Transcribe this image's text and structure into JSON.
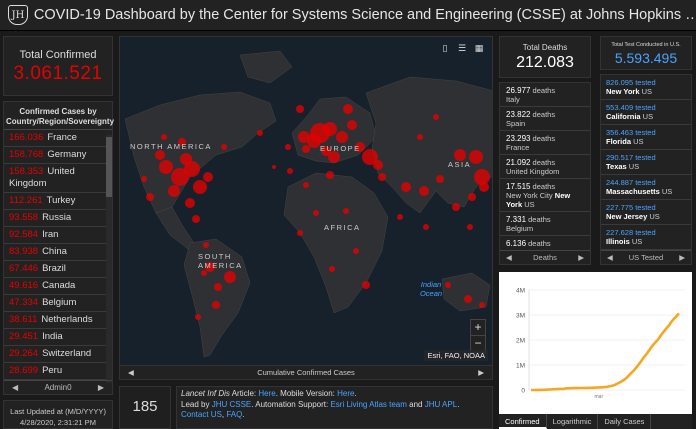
{
  "header": {
    "logo": "JH",
    "title": "COVID-19 Dashboard by the Center for Systems Science and Engineering (CSSE) at Johns Hopkins …"
  },
  "total_confirmed": {
    "label": "Total Confirmed",
    "value": "3.061.521"
  },
  "country_list": {
    "header": "Confirmed Cases by Country/Region/Sovereignty",
    "items": [
      {
        "count": "166.036",
        "name": "France"
      },
      {
        "count": "158.768",
        "name": "Germany"
      },
      {
        "count": "158.353",
        "name": "United Kingdom"
      },
      {
        "count": "112.261",
        "name": "Turkey"
      },
      {
        "count": "93.558",
        "name": "Russia"
      },
      {
        "count": "92.584",
        "name": "Iran"
      },
      {
        "count": "83.938",
        "name": "China"
      },
      {
        "count": "67.446",
        "name": "Brazil"
      },
      {
        "count": "49.616",
        "name": "Canada"
      },
      {
        "count": "47.334",
        "name": "Belgium"
      },
      {
        "count": "38.611",
        "name": "Netherlands"
      },
      {
        "count": "29.451",
        "name": "India"
      },
      {
        "count": "29.264",
        "name": "Switzerland"
      },
      {
        "count": "28.699",
        "name": "Peru"
      }
    ],
    "footer": "Admin0"
  },
  "last_updated": {
    "label": "Last Updated at (M/D/YYYY)",
    "value": "4/28/2020, 2:31:21 PM"
  },
  "map": {
    "labels": {
      "north_america": "NORTH AMERICA",
      "south_america": "SOUTH AMERICA",
      "europe": "EUROPE",
      "africa": "AFRICA",
      "asia": "ASIA",
      "indian_ocean": "Indian Ocean"
    },
    "attribution": "Esri, FAO, NOAA",
    "caption": "Cumulative Confirmed Cases",
    "zoom_in": "+",
    "zoom_out": "−"
  },
  "countries_count": {
    "value": "185"
  },
  "info": {
    "p1": "Lancet Inf Dis",
    "p2": " Article: ",
    "here1": "Here",
    "p3": ". Mobile Version: ",
    "here2": "Here",
    "p4": ".",
    "lead": "Lead by ",
    "jhu": "JHU CSSE",
    "auto": ". Automation Support: ",
    "esri": "Esri Living Atlas team",
    "and": " and ",
    "jhuapl": "JHU APL",
    "dot": ". ",
    "contact": "Contact US",
    "faq": "FAQ"
  },
  "total_deaths": {
    "label": "Total Deaths",
    "value": "212.083"
  },
  "deaths_list": {
    "items": [
      {
        "count": "26.977",
        "unit": "deaths",
        "place": "Italy"
      },
      {
        "count": "23.822",
        "unit": "deaths",
        "place": "Spain"
      },
      {
        "count": "23.293",
        "unit": "deaths",
        "place": "France"
      },
      {
        "count": "21.092",
        "unit": "deaths",
        "place": "United Kingdom"
      },
      {
        "count": "17.515",
        "unit": "deaths",
        "place": "New York City ",
        "bold": "New York",
        "rest": " US"
      },
      {
        "count": "7.331",
        "unit": "deaths",
        "place": "Belgium"
      },
      {
        "count": "6.136",
        "unit": "deaths",
        "place": ""
      }
    ],
    "footer": "Deaths"
  },
  "total_tests": {
    "label": "Total Test Conducted in U.S.",
    "value": "5.593.495"
  },
  "tests_list": {
    "items": [
      {
        "count": "826.095 tested",
        "state": "New York",
        "country": "US"
      },
      {
        "count": "553.409 tested",
        "state": "California",
        "country": "US"
      },
      {
        "count": "356.463 tested",
        "state": "Florida",
        "country": "US"
      },
      {
        "count": "290.517 tested",
        "state": "Texas",
        "country": "US"
      },
      {
        "count": "244.887 tested",
        "state": "Massachusetts",
        "country": "US"
      },
      {
        "count": "227.775 tested",
        "state": "New Jersey",
        "country": "US"
      },
      {
        "count": "227.628 tested",
        "state": "Illinois",
        "country": "US"
      }
    ],
    "footer": "US Tested"
  },
  "chart_data": {
    "type": "line",
    "yticks": [
      "4M",
      "3M",
      "2M",
      "1M",
      "0"
    ],
    "xtick": "mar",
    "ylim": [
      0,
      4000000
    ],
    "color": "#f5a623",
    "y": [
      555,
      580,
      850,
      1320,
      2010,
      2880,
      5580,
      6170,
      8230,
      9930,
      12040,
      16790,
      19880,
      23890,
      27640,
      30820,
      34390,
      37120,
      40150,
      42760,
      44800,
      45170,
      60370,
      66890,
      69040,
      71230,
      73260,
      75140,
      75640,
      76200,
      76840,
      78600,
      78990,
      79570,
      80410,
      81380,
      82750,
      84120,
      86600,
      88600,
      90440,
      93090,
      95120,
      98000,
      102050,
      106100,
      109800,
      114230,
      119000,
      128000,
      145000,
      156000,
      169000,
      185000,
      209000,
      244000,
      273000,
      304000,
      338000,
      382000,
      418000,
      468000,
      529000,
      593000,
      660000,
      721000,
      782000,
      857000,
      932000,
      1012000,
      1096000,
      1181000,
      1277000,
      1350000,
      1427000,
      1511000,
      1595000,
      1691000,
      1771000,
      1846000,
      1916000,
      1976000,
      2056000,
      2152000,
      2240000,
      2317000,
      2401000,
      2472000,
      2549000,
      2624000,
      2719000,
      2791000,
      2863000,
      2920000,
      2995000,
      3061521
    ]
  },
  "chart_tabs": [
    "Confirmed",
    "Logarithmic",
    "Daily Cases"
  ]
}
